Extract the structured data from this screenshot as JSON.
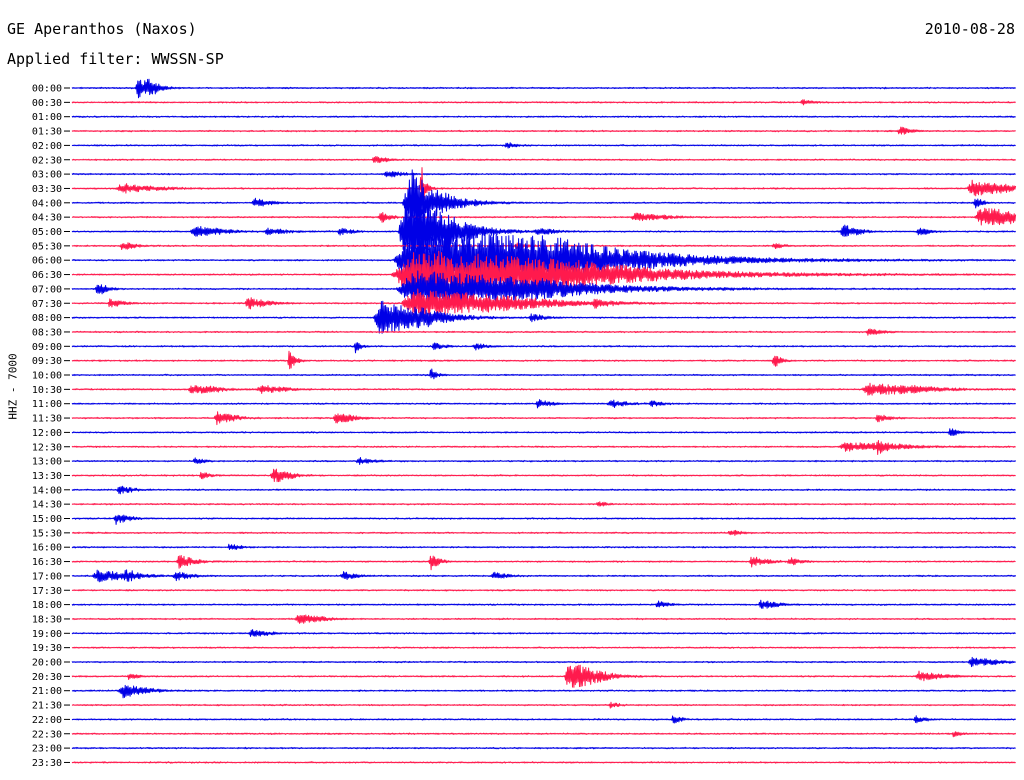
{
  "header": {
    "station": "GE Aperanthos (Naxos)",
    "date": "2010-08-28",
    "filter": "Applied filter: WWSSN-SP"
  },
  "chart_data": {
    "type": "line",
    "title": "GE Aperanthos (Naxos)",
    "subtitle": "Applied filter: WWSSN-SP",
    "ylabel": "HHZ - 7000",
    "xlabel": "",
    "colors": [
      "#0000e6",
      "#ff1a4d"
    ],
    "grid": false,
    "tick_labels": [
      "00:00",
      "00:30",
      "01:00",
      "01:30",
      "02:00",
      "02:30",
      "03:00",
      "03:30",
      "04:00",
      "04:30",
      "05:00",
      "05:30",
      "06:00",
      "06:30",
      "07:00",
      "07:30",
      "08:00",
      "08:30",
      "09:00",
      "09:30",
      "10:00",
      "10:30",
      "11:00",
      "11:30",
      "12:00",
      "12:30",
      "13:00",
      "13:30",
      "14:00",
      "14:30",
      "15:00",
      "15:30",
      "16:00",
      "16:30",
      "17:00",
      "17:30",
      "18:00",
      "18:30",
      "19:00",
      "19:30",
      "20:00",
      "20:30",
      "21:00",
      "21:30",
      "22:00",
      "22:30",
      "23:00",
      "23:30"
    ],
    "trace_minutes": 30,
    "noise_amplitude": 0.08,
    "bursts": [
      [
        0,
        2.1,
        0.6,
        1.5,
        0.8
      ],
      [
        0,
        2.4,
        0.3,
        0.8,
        1.0
      ],
      [
        1,
        23.2,
        0.4,
        0.4,
        0.8
      ],
      [
        3,
        26.3,
        0.4,
        0.6,
        0.8
      ],
      [
        4,
        13.8,
        0.3,
        0.5,
        0.8
      ],
      [
        5,
        9.6,
        0.4,
        0.6,
        0.8
      ],
      [
        6,
        10.0,
        0.6,
        0.5,
        0.8
      ],
      [
        7,
        1.6,
        1.5,
        0.7,
        0.6
      ],
      [
        7,
        11.1,
        0.3,
        3.5,
        0.4
      ],
      [
        7,
        28.6,
        1.0,
        1.2,
        1.5
      ],
      [
        8,
        5.8,
        0.6,
        0.6,
        0.8
      ],
      [
        8,
        10.8,
        2.0,
        5.0,
        0.4
      ],
      [
        8,
        28.7,
        0.3,
        1.2,
        0.6
      ],
      [
        9,
        9.8,
        0.4,
        1.0,
        0.6
      ],
      [
        9,
        17.9,
        1.0,
        0.6,
        1.0
      ],
      [
        9,
        28.9,
        1.5,
        1.4,
        1.5
      ],
      [
        10,
        3.9,
        1.0,
        0.8,
        1.0
      ],
      [
        10,
        6.2,
        0.6,
        0.4,
        1.5
      ],
      [
        10,
        8.5,
        0.4,
        0.5,
        1.0
      ],
      [
        10,
        10.6,
        1.5,
        5.5,
        1.2
      ],
      [
        10,
        14.8,
        0.6,
        0.5,
        0.8
      ],
      [
        10,
        24.5,
        0.6,
        1.0,
        0.8
      ],
      [
        10,
        26.9,
        0.4,
        0.6,
        0.8
      ],
      [
        11,
        1.6,
        0.5,
        0.6,
        0.8
      ],
      [
        11,
        14.1,
        0.5,
        0.4,
        0.8
      ],
      [
        11,
        22.3,
        0.4,
        0.4,
        0.8
      ],
      [
        12,
        10.9,
        4.5,
        5.0,
        2.5
      ],
      [
        13,
        10.9,
        5.0,
        3.5,
        2.0
      ],
      [
        14,
        0.8,
        0.4,
        1.0,
        0.8
      ],
      [
        14,
        10.9,
        4.0,
        2.6,
        1.8
      ],
      [
        15,
        1.2,
        0.5,
        0.6,
        0.8
      ],
      [
        15,
        5.6,
        0.8,
        0.8,
        0.8
      ],
      [
        15,
        10.9,
        3.0,
        2.0,
        1.5
      ],
      [
        15,
        16.6,
        0.6,
        0.5,
        0.8
      ],
      [
        16,
        9.8,
        1.5,
        2.5,
        1.5
      ],
      [
        16,
        14.6,
        0.5,
        0.5,
        0.8
      ],
      [
        17,
        25.3,
        0.5,
        0.5,
        0.8
      ],
      [
        18,
        9.0,
        0.3,
        1.0,
        0.5
      ],
      [
        18,
        11.5,
        0.4,
        0.5,
        0.8
      ],
      [
        18,
        12.8,
        0.4,
        0.5,
        0.8
      ],
      [
        19,
        6.9,
        0.3,
        1.4,
        0.6
      ],
      [
        19,
        22.3,
        0.3,
        1.2,
        0.6
      ],
      [
        20,
        11.4,
        0.3,
        1.0,
        0.5
      ],
      [
        21,
        3.8,
        0.8,
        0.6,
        1.5
      ],
      [
        21,
        6.0,
        0.8,
        0.6,
        1.0
      ],
      [
        21,
        25.3,
        1.5,
        0.8,
        2.0
      ],
      [
        22,
        14.8,
        0.5,
        0.6,
        0.8
      ],
      [
        22,
        17.1,
        0.6,
        0.6,
        0.8
      ],
      [
        22,
        18.4,
        0.4,
        0.4,
        0.8
      ],
      [
        23,
        4.6,
        0.6,
        0.9,
        1.0
      ],
      [
        23,
        8.4,
        0.6,
        0.8,
        1.0
      ],
      [
        23,
        25.6,
        0.4,
        0.6,
        0.8
      ],
      [
        24,
        27.9,
        0.3,
        0.6,
        0.8
      ],
      [
        25,
        24.6,
        1.5,
        0.6,
        2.0
      ],
      [
        25,
        25.6,
        0.3,
        0.7,
        0.6
      ],
      [
        26,
        3.9,
        0.3,
        0.5,
        0.8
      ],
      [
        26,
        9.1,
        0.5,
        0.5,
        0.8
      ],
      [
        27,
        6.4,
        0.6,
        1.2,
        0.8
      ],
      [
        27,
        4.1,
        0.3,
        0.5,
        0.8
      ],
      [
        28,
        1.5,
        0.5,
        0.6,
        0.8
      ],
      [
        29,
        16.7,
        0.3,
        0.5,
        0.8
      ],
      [
        30,
        1.4,
        0.5,
        0.8,
        0.8
      ],
      [
        31,
        20.9,
        0.4,
        0.5,
        0.8
      ],
      [
        32,
        5.0,
        0.4,
        0.5,
        0.8
      ],
      [
        33,
        3.4,
        0.6,
        1.0,
        0.8
      ],
      [
        33,
        11.4,
        0.4,
        1.2,
        0.6
      ],
      [
        33,
        21.6,
        0.6,
        0.7,
        0.8
      ],
      [
        33,
        22.8,
        0.4,
        0.6,
        0.8
      ],
      [
        34,
        0.8,
        1.0,
        0.8,
        1.5
      ],
      [
        34,
        1.7,
        0.4,
        0.6,
        0.8
      ],
      [
        34,
        3.3,
        0.6,
        0.6,
        0.8
      ],
      [
        34,
        8.6,
        0.5,
        0.6,
        0.8
      ],
      [
        34,
        13.4,
        0.5,
        0.5,
        0.8
      ],
      [
        36,
        18.6,
        0.4,
        0.5,
        0.8
      ],
      [
        36,
        21.9,
        0.6,
        0.7,
        0.8
      ],
      [
        37,
        7.2,
        0.8,
        0.7,
        1.0
      ],
      [
        38,
        5.7,
        0.6,
        0.6,
        0.8
      ],
      [
        40,
        28.6,
        0.8,
        0.7,
        1.0
      ],
      [
        41,
        1.8,
        0.3,
        0.5,
        0.8
      ],
      [
        41,
        15.8,
        1.0,
        2.2,
        1.0
      ],
      [
        41,
        26.9,
        0.8,
        0.7,
        1.0
      ],
      [
        42,
        1.6,
        0.8,
        1.0,
        1.0
      ],
      [
        43,
        17.1,
        0.3,
        0.4,
        0.8
      ],
      [
        44,
        19.1,
        0.3,
        0.6,
        0.8
      ],
      [
        44,
        26.8,
        0.4,
        0.5,
        0.8
      ],
      [
        45,
        28.0,
        0.3,
        0.4,
        0.8
      ]
    ],
    "clock_ticks_visible": true
  }
}
